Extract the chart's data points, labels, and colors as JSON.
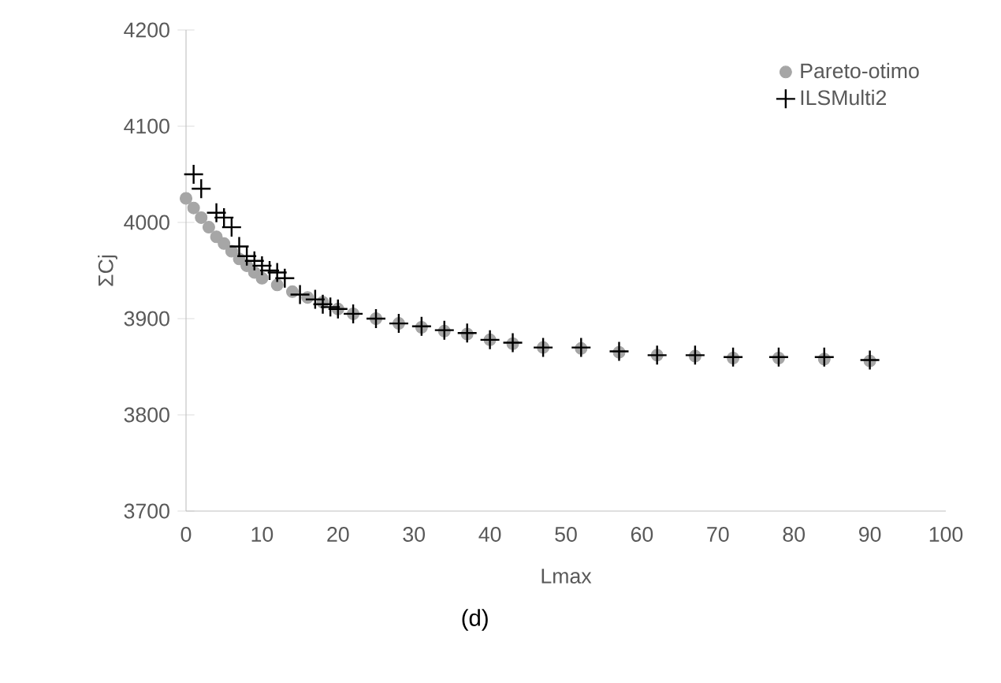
{
  "chart_data": {
    "type": "scatter",
    "xlabel": "Lmax",
    "ylabel": "ΣCj",
    "annotations": [
      "(d)"
    ],
    "xlim": [
      0,
      100
    ],
    "xticks": [
      0,
      10,
      20,
      30,
      40,
      50,
      60,
      70,
      80,
      90,
      100
    ],
    "ylim": [
      3700,
      4200
    ],
    "yticks": [
      3700,
      3800,
      3900,
      4000,
      4100,
      4200
    ],
    "grid": false,
    "legend": "top right",
    "series": [
      {
        "name": "Pareto-otimo",
        "color": "#a6a6a6",
        "marker": "circle",
        "x": [
          0,
          1,
          2,
          3,
          4,
          5,
          6,
          7,
          8,
          9,
          10,
          12,
          14,
          16,
          18,
          20,
          22,
          25,
          28,
          31,
          34,
          37,
          40,
          43,
          47,
          52,
          57,
          62,
          67,
          72,
          78,
          84,
          90
        ],
        "values": [
          4025,
          4015,
          4005,
          3995,
          3985,
          3978,
          3970,
          3962,
          3955,
          3948,
          3942,
          3935,
          3928,
          3922,
          3917,
          3910,
          3905,
          3900,
          3895,
          3891,
          3887,
          3884,
          3878,
          3874,
          3870,
          3869,
          3865,
          3862,
          3861,
          3859,
          3859,
          3858,
          3856
        ]
      },
      {
        "name": "ILSMulti2",
        "color": "#000000",
        "marker": "cross",
        "x": [
          1,
          2,
          4,
          5,
          6,
          7,
          8,
          9,
          10,
          11,
          12,
          13,
          15,
          17,
          18,
          19,
          20,
          22,
          25,
          28,
          31,
          34,
          37,
          40,
          43,
          47,
          52,
          57,
          62,
          67,
          72,
          78,
          84,
          90
        ],
        "values": [
          4050,
          4035,
          4010,
          4005,
          3995,
          3975,
          3965,
          3960,
          3955,
          3950,
          3948,
          3942,
          3925,
          3920,
          3915,
          3912,
          3910,
          3905,
          3900,
          3895,
          3892,
          3888,
          3885,
          3878,
          3875,
          3870,
          3870,
          3866,
          3862,
          3862,
          3860,
          3860,
          3860,
          3857
        ]
      }
    ]
  }
}
